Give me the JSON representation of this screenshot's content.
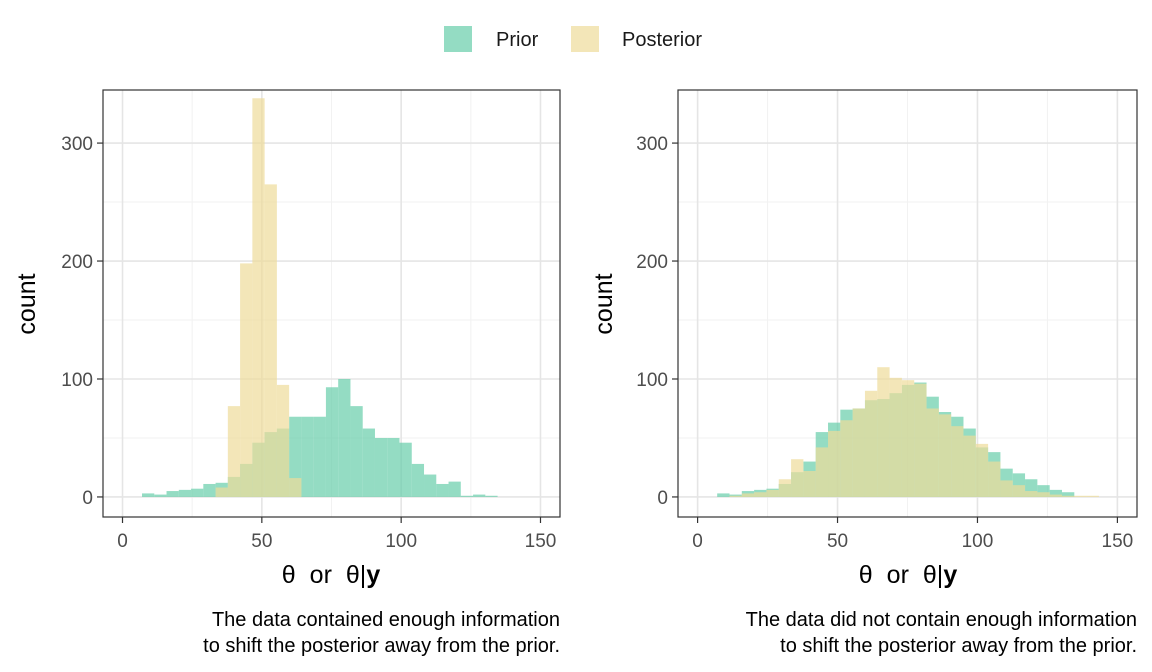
{
  "legend": {
    "items": [
      {
        "label": "Prior",
        "color": "#66CDAA"
      },
      {
        "label": "Posterior",
        "color": "#EEDC9A"
      }
    ]
  },
  "chart_data": [
    {
      "type": "bar",
      "subtype": "overlaid-histogram",
      "ylabel": "count",
      "xlabel": {
        "theta": "θ",
        "or": "or",
        "cond": "θ|",
        "y": "y"
      },
      "xlim": [
        -7,
        157
      ],
      "ylim": [
        -17,
        345
      ],
      "xticks": [
        0,
        50,
        100,
        150
      ],
      "yticks": [
        0,
        100,
        200,
        300
      ],
      "bin_width": 4.4,
      "caption": [
        "The data contained enough information",
        "to shift the posterior away from the prior."
      ],
      "series": [
        {
          "name": "Prior",
          "color": "#66CDAA",
          "bins": [
            [
              7,
              3
            ],
            [
              11.4,
              2
            ],
            [
              15.8,
              5
            ],
            [
              20.2,
              6
            ],
            [
              24.6,
              7
            ],
            [
              29,
              11
            ],
            [
              33.4,
              12
            ],
            [
              37.8,
              17
            ],
            [
              42.2,
              28
            ],
            [
              46.6,
              46
            ],
            [
              51,
              55
            ],
            [
              55.4,
              58
            ],
            [
              59.8,
              68
            ],
            [
              64.2,
              68
            ],
            [
              68.6,
              68
            ],
            [
              73,
              93
            ],
            [
              77.4,
              100
            ],
            [
              81.8,
              77
            ],
            [
              86.2,
              58
            ],
            [
              90.6,
              50
            ],
            [
              95,
              50
            ],
            [
              99.4,
              46
            ],
            [
              103.8,
              28
            ],
            [
              108.2,
              19
            ],
            [
              112.6,
              11
            ],
            [
              117,
              13
            ],
            [
              121.4,
              1
            ],
            [
              125.8,
              2
            ],
            [
              130.2,
              1
            ]
          ]
        },
        {
          "name": "Posterior",
          "color": "#EEDC9A",
          "bins": [
            [
              33.4,
              8
            ],
            [
              37.8,
              77
            ],
            [
              42.2,
              198
            ],
            [
              46.6,
              338
            ],
            [
              51,
              265
            ],
            [
              55.4,
              95
            ],
            [
              59.8,
              16
            ]
          ]
        }
      ]
    },
    {
      "type": "bar",
      "subtype": "overlaid-histogram",
      "ylabel": "count",
      "xlabel": {
        "theta": "θ",
        "or": "or",
        "cond": "θ|",
        "y": "y"
      },
      "xlim": [
        -7,
        157
      ],
      "ylim": [
        -17,
        345
      ],
      "xticks": [
        0,
        50,
        100,
        150
      ],
      "yticks": [
        0,
        100,
        200,
        300
      ],
      "bin_width": 4.4,
      "caption": [
        "The data did not contain enough information",
        "to shift the posterior away from the prior."
      ],
      "series": [
        {
          "name": "Prior",
          "color": "#66CDAA",
          "bins": [
            [
              7,
              3
            ],
            [
              11.4,
              2
            ],
            [
              15.8,
              5
            ],
            [
              20.2,
              6
            ],
            [
              24.6,
              7
            ],
            [
              29,
              11
            ],
            [
              33.4,
              21
            ],
            [
              37.8,
              30
            ],
            [
              42.2,
              55
            ],
            [
              46.6,
              63
            ],
            [
              51,
              74
            ],
            [
              55.4,
              75
            ],
            [
              59.8,
              82
            ],
            [
              64.2,
              83
            ],
            [
              68.6,
              88
            ],
            [
              73,
              95
            ],
            [
              77.4,
              97
            ],
            [
              81.8,
              85
            ],
            [
              86.2,
              72
            ],
            [
              90.6,
              68
            ],
            [
              95,
              58
            ],
            [
              99.4,
              42
            ],
            [
              103.8,
              38
            ],
            [
              108.2,
              24
            ],
            [
              112.6,
              20
            ],
            [
              117,
              15
            ],
            [
              121.4,
              10
            ],
            [
              125.8,
              6
            ],
            [
              130.2,
              4
            ]
          ]
        },
        {
          "name": "Posterior",
          "color": "#EEDC9A",
          "bins": [
            [
              11.4,
              1
            ],
            [
              15.8,
              3
            ],
            [
              20.2,
              4
            ],
            [
              24.6,
              6
            ],
            [
              29,
              15
            ],
            [
              33.4,
              32
            ],
            [
              37.8,
              22
            ],
            [
              42.2,
              42
            ],
            [
              46.6,
              56
            ],
            [
              51,
              65
            ],
            [
              55.4,
              75
            ],
            [
              59.8,
              90
            ],
            [
              64.2,
              110
            ],
            [
              68.6,
              101
            ],
            [
              73,
              99
            ],
            [
              77.4,
              96
            ],
            [
              81.8,
              75
            ],
            [
              86.2,
              70
            ],
            [
              90.6,
              60
            ],
            [
              95,
              52
            ],
            [
              99.4,
              45
            ],
            [
              103.8,
              30
            ],
            [
              108.2,
              14
            ],
            [
              112.6,
              10
            ],
            [
              117,
              5
            ],
            [
              121.4,
              4
            ],
            [
              125.8,
              2
            ],
            [
              130.2,
              1
            ],
            [
              134.6,
              1
            ],
            [
              139,
              1
            ]
          ]
        }
      ]
    }
  ]
}
